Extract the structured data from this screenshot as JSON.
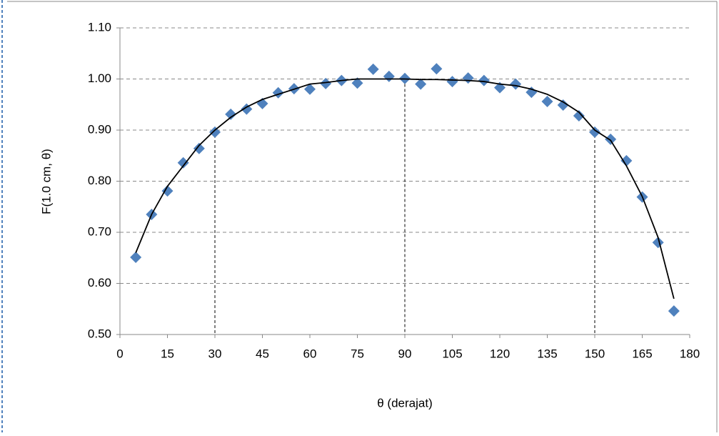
{
  "chart_data": {
    "type": "scatter",
    "xlabel": "θ (derajat)",
    "ylabel": "F(1.0 cm, θ)",
    "xlim": [
      0,
      180
    ],
    "ylim": [
      0.5,
      1.1
    ],
    "xticks": [
      0,
      15,
      30,
      45,
      60,
      75,
      90,
      105,
      120,
      135,
      150,
      165,
      180
    ],
    "yticks": [
      {
        "value": 0.5,
        "label": "0.50"
      },
      {
        "value": 0.6,
        "label": "0.60"
      },
      {
        "value": 0.7,
        "label": "0.70"
      },
      {
        "value": 0.8,
        "label": "0.80"
      },
      {
        "value": 0.9,
        "label": "0.90"
      },
      {
        "value": 1.0,
        "label": "1.00"
      },
      {
        "value": 1.1,
        "label": "1.10"
      }
    ],
    "grid": true,
    "series": [
      {
        "color": "#4f81bd",
        "marker": "diamond",
        "x": [
          5,
          10,
          15,
          20,
          25,
          30,
          35,
          40,
          45,
          50,
          55,
          60,
          65,
          70,
          75,
          80,
          85,
          90,
          95,
          100,
          105,
          110,
          115,
          120,
          125,
          130,
          135,
          140,
          145,
          150,
          155,
          160,
          165,
          170,
          175
        ],
        "values": [
          0.651,
          0.735,
          0.781,
          0.836,
          0.864,
          0.896,
          0.931,
          0.941,
          0.952,
          0.973,
          0.981,
          0.98,
          0.991,
          0.997,
          0.992,
          1.019,
          1.005,
          1.001,
          0.99,
          1.02,
          0.995,
          1.002,
          0.997,
          0.983,
          0.99,
          0.974,
          0.956,
          0.949,
          0.928,
          0.896,
          0.882,
          0.84,
          0.769,
          0.68,
          0.546
        ]
      },
      {
        "color": "#000000",
        "marker": "line",
        "x": [
          5,
          10,
          15,
          20,
          25,
          30,
          35,
          40,
          45,
          50,
          55,
          60,
          65,
          70,
          75,
          80,
          85,
          90,
          95,
          100,
          105,
          110,
          115,
          120,
          125,
          130,
          135,
          140,
          145,
          150,
          155,
          160,
          165,
          170,
          175
        ],
        "values": [
          0.66,
          0.735,
          0.79,
          0.83,
          0.87,
          0.9,
          0.925,
          0.945,
          0.96,
          0.97,
          0.98,
          0.99,
          0.993,
          0.997,
          1.0,
          1.0,
          1.0,
          1.0,
          0.999,
          0.999,
          0.998,
          0.997,
          0.995,
          0.99,
          0.987,
          0.98,
          0.97,
          0.955,
          0.935,
          0.9,
          0.88,
          0.83,
          0.77,
          0.69,
          0.57
        ]
      }
    ],
    "reference_lines": [
      {
        "x": 30,
        "y": 0.9
      },
      {
        "x": 90,
        "y": 1.0
      },
      {
        "x": 150,
        "y": 0.9
      }
    ]
  }
}
